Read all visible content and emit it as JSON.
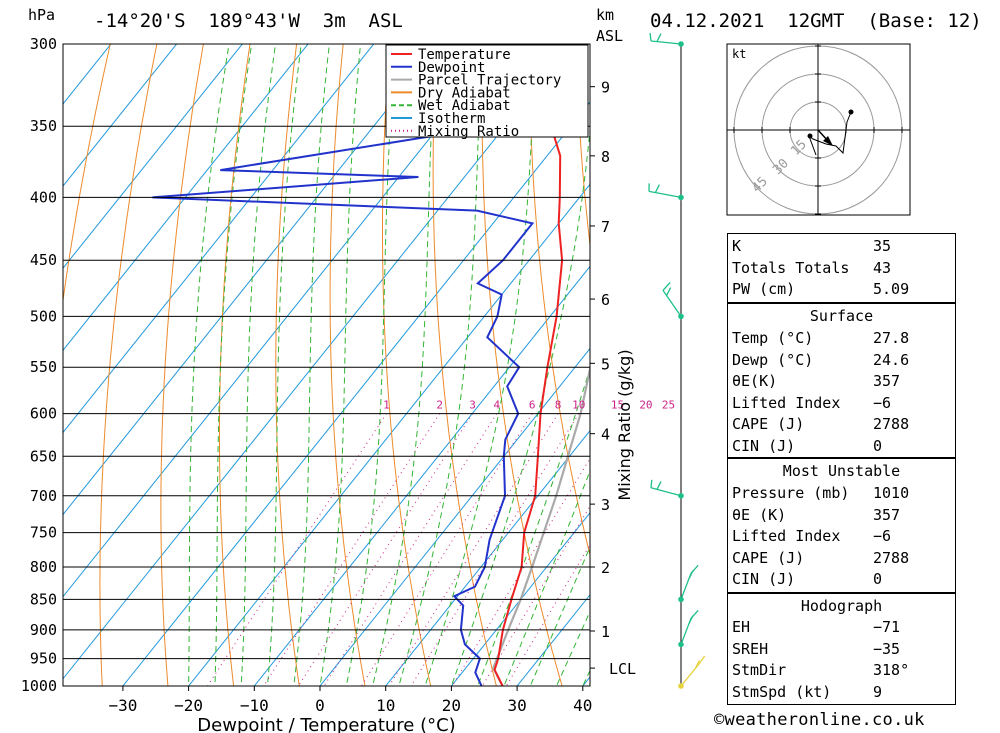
{
  "header": {
    "location": "-14°20'S  189°43'W  3m  ASL",
    "datetime": "04.12.2021  12GMT  (Base: 12)",
    "left_unit": "hPa",
    "right_unit_km": "km",
    "right_unit_asl": "ASL"
  },
  "chart_data": {
    "type": "skew-t",
    "xlabel": "Dewpoint / Temperature (°C)",
    "ylabel_left": "hPa",
    "ylabel_right": "Mixing Ratio (g/kg)",
    "pressure_ticks": [
      300,
      350,
      400,
      450,
      500,
      550,
      600,
      650,
      700,
      750,
      800,
      850,
      900,
      950,
      1000
    ],
    "temperature_ticks": [
      -30,
      -20,
      -10,
      0,
      10,
      20,
      30,
      40
    ],
    "xlim_bottom": [
      -40,
      40
    ],
    "km_ticks": [
      {
        "label": "9",
        "p": 325
      },
      {
        "label": "8",
        "p": 370
      },
      {
        "label": "7",
        "p": 422
      },
      {
        "label": "6",
        "p": 484
      },
      {
        "label": "5",
        "p": 546
      },
      {
        "label": "4",
        "p": 623
      },
      {
        "label": "3",
        "p": 711
      },
      {
        "label": "2",
        "p": 800
      },
      {
        "label": "1",
        "p": 902
      },
      {
        "label": "LCL",
        "p": 967
      }
    ],
    "mixing_ratio_labels": [
      "1",
      "2",
      "3",
      "4",
      "6",
      "8",
      "10",
      "15",
      "20",
      "25"
    ],
    "mixing_ratio_values": [
      1,
      2,
      3,
      4,
      6,
      8,
      10,
      15,
      20,
      25
    ],
    "legend": [
      "Temperature",
      "Dewpoint",
      "Parcel Trajectory",
      "Dry Adiabat",
      "Wet Adiabat",
      "Isotherm",
      "Mixing Ratio"
    ],
    "series_colors": {
      "temperature": "#ee2222",
      "dewpoint": "#2233cc",
      "parcel": "#aaaaaa",
      "dry_adiabat": "#ee8a2a",
      "wet_adiabat": "#33b533",
      "isotherm": "#2299dd",
      "mixing_ratio": "#cc2288"
    },
    "temperature_profile": [
      {
        "p": 1000,
        "t": 27.8
      },
      {
        "p": 970,
        "t": 24.6
      },
      {
        "p": 950,
        "t": 23.8
      },
      {
        "p": 900,
        "t": 21.0
      },
      {
        "p": 850,
        "t": 18.6
      },
      {
        "p": 800,
        "t": 16.2
      },
      {
        "p": 750,
        "t": 12.4
      },
      {
        "p": 700,
        "t": 9.6
      },
      {
        "p": 650,
        "t": 5.2
      },
      {
        "p": 600,
        "t": 0.4
      },
      {
        "p": 550,
        "t": -4.2
      },
      {
        "p": 500,
        "t": -9.0
      },
      {
        "p": 450,
        "t": -15.0
      },
      {
        "p": 420,
        "t": -20.0
      },
      {
        "p": 400,
        "t": -23.0
      },
      {
        "p": 370,
        "t": -28.0
      },
      {
        "p": 350,
        "t": -33.0
      },
      {
        "p": 320,
        "t": -40.0
      },
      {
        "p": 300,
        "t": -46.0
      }
    ],
    "dewpoint_profile": [
      {
        "p": 1000,
        "t": 24.6
      },
      {
        "p": 975,
        "t": 22.0
      },
      {
        "p": 950,
        "t": 21.0
      },
      {
        "p": 925,
        "t": 17.0
      },
      {
        "p": 900,
        "t": 14.6
      },
      {
        "p": 860,
        "t": 12.0
      },
      {
        "p": 845,
        "t": 9.5
      },
      {
        "p": 830,
        "t": 11.5
      },
      {
        "p": 800,
        "t": 10.6
      },
      {
        "p": 760,
        "t": 8.0
      },
      {
        "p": 700,
        "t": 5.0
      },
      {
        "p": 650,
        "t": 0.0
      },
      {
        "p": 630,
        "t": -1.8
      },
      {
        "p": 600,
        "t": -3.0
      },
      {
        "p": 570,
        "t": -8.0
      },
      {
        "p": 550,
        "t": -8.5
      },
      {
        "p": 520,
        "t": -17.0
      },
      {
        "p": 500,
        "t": -18.0
      },
      {
        "p": 480,
        "t": -20.0
      },
      {
        "p": 470,
        "t": -25.0
      },
      {
        "p": 450,
        "t": -24.0
      },
      {
        "p": 420,
        "t": -24.0
      },
      {
        "p": 410,
        "t": -34.0
      },
      {
        "p": 400,
        "t": -85.0
      },
      {
        "p": 385,
        "t": -47.0
      },
      {
        "p": 380,
        "t": -78.0
      },
      {
        "p": 355,
        "t": -48.0
      },
      {
        "p": 340,
        "t": -48.0
      },
      {
        "p": 330,
        "t": -55.0
      },
      {
        "p": 325,
        "t": -57.0
      },
      {
        "p": 318,
        "t": -48.0
      },
      {
        "p": 310,
        "t": -49.0
      },
      {
        "p": 300,
        "t": -54.0
      }
    ],
    "parcel_profile": [
      {
        "p": 1000,
        "t": 27.8
      },
      {
        "p": 967,
        "t": 24.2
      },
      {
        "p": 900,
        "t": 21.8
      },
      {
        "p": 850,
        "t": 20.0
      },
      {
        "p": 800,
        "t": 17.8
      },
      {
        "p": 700,
        "t": 12.8
      },
      {
        "p": 600,
        "t": 6.5
      },
      {
        "p": 500,
        "t": -2.2
      },
      {
        "p": 400,
        "t": -15.0
      },
      {
        "p": 350,
        "t": -24.0
      },
      {
        "p": 300,
        "t": -35.0
      }
    ],
    "wind_barbs_p": [
      300,
      400,
      500,
      700,
      850,
      925,
      1000
    ]
  },
  "hodograph": {
    "unit": "kt",
    "ring_labels": [
      "15",
      "30",
      "45"
    ]
  },
  "indices": {
    "general": [
      {
        "label": "K",
        "value": "35"
      },
      {
        "label": "Totals Totals",
        "value": "43"
      },
      {
        "label": "PW (cm)",
        "value": "5.09"
      }
    ],
    "surface_title": "Surface",
    "surface": [
      {
        "label": "Temp (°C)",
        "value": "27.8"
      },
      {
        "label": "Dewp (°C)",
        "value": "24.6"
      },
      {
        "label": "θE(K)",
        "value": "357"
      },
      {
        "label": "Lifted Index",
        "value": "-6"
      },
      {
        "label": "CAPE (J)",
        "value": "2788"
      },
      {
        "label": "CIN (J)",
        "value": "0"
      }
    ],
    "unstable_title": "Most Unstable",
    "unstable": [
      {
        "label": "Pressure (mb)",
        "value": "1010"
      },
      {
        "label": "θE (K)",
        "value": "357"
      },
      {
        "label": "Lifted Index",
        "value": "-6"
      },
      {
        "label": "CAPE (J)",
        "value": "2788"
      },
      {
        "label": "CIN (J)",
        "value": "0"
      }
    ],
    "hodo_title": "Hodograph",
    "hodo": [
      {
        "label": "EH",
        "value": "-71"
      },
      {
        "label": "SREH",
        "value": "-35"
      },
      {
        "label": "StmDir",
        "value": "318°"
      },
      {
        "label": "StmSpd (kt)",
        "value": "9"
      }
    ]
  },
  "credit": "©weatheronline.co.uk"
}
